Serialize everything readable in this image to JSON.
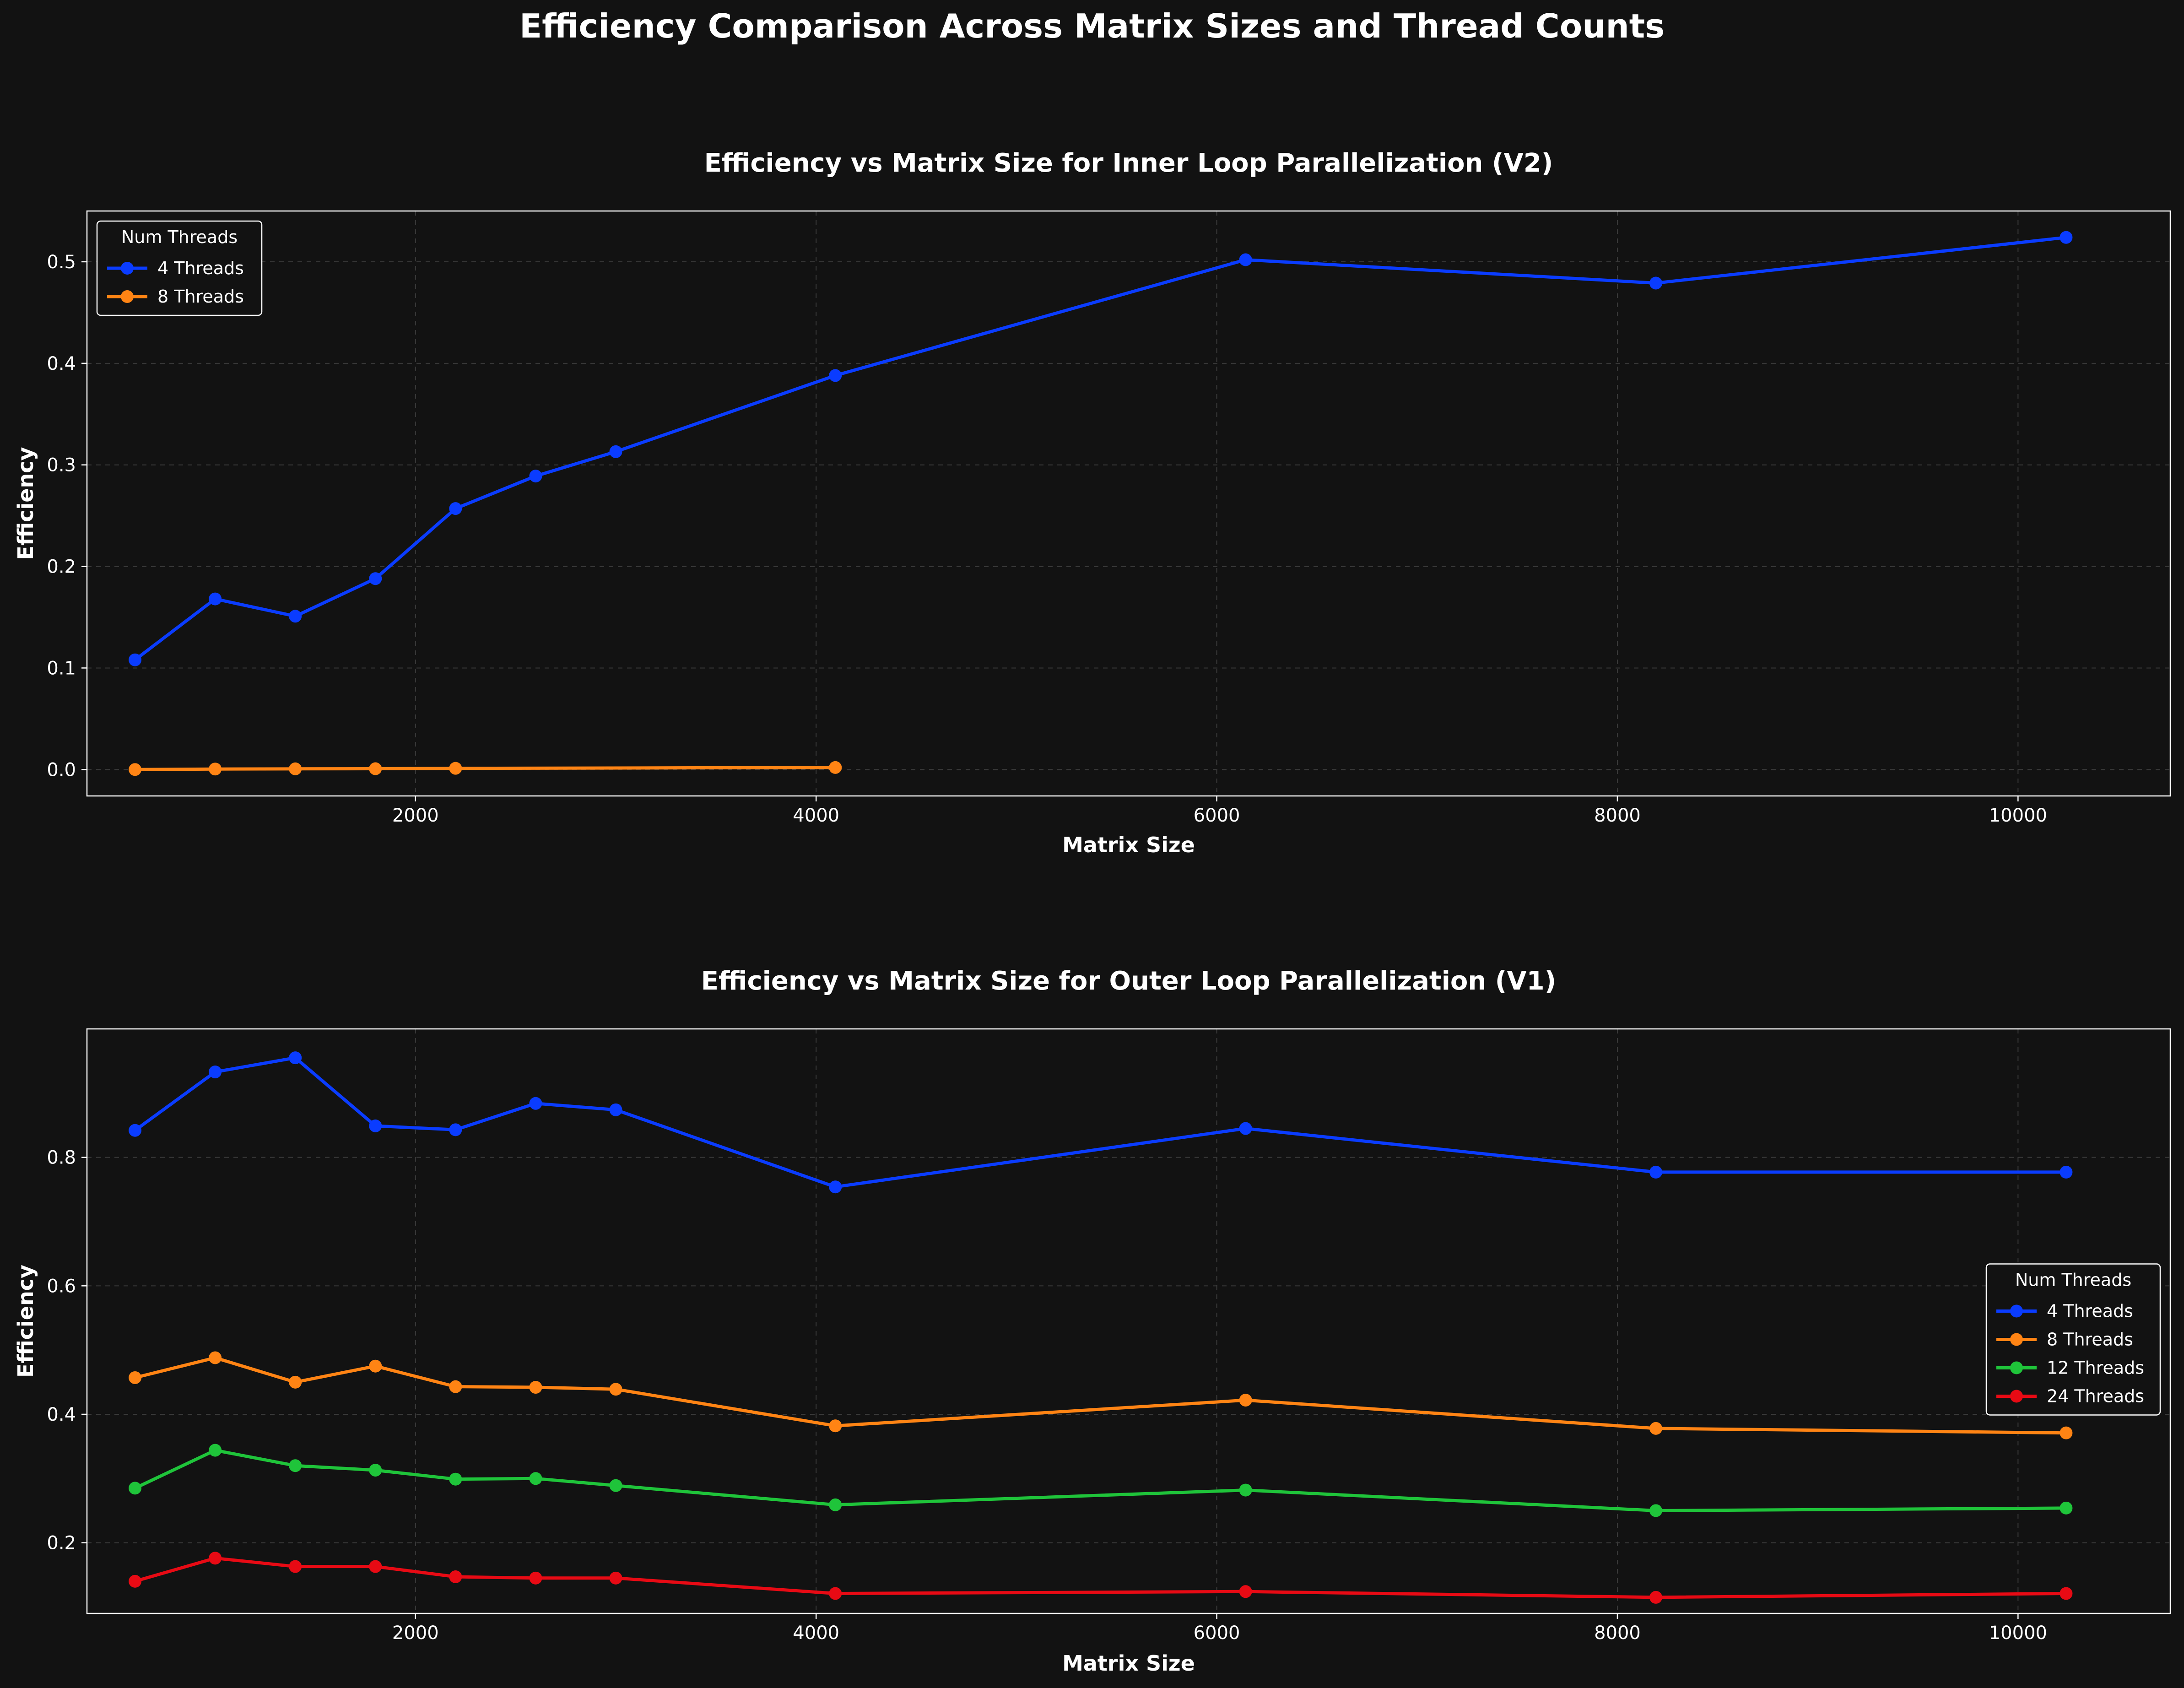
{
  "figure": {
    "suptitle": "Efficiency Comparison Across Matrix Sizes and Thread Counts",
    "background": "#121212"
  },
  "chart_data": [
    {
      "type": "line",
      "title": "Efficiency vs Matrix Size for Inner Loop Parallelization (V2)",
      "xlabel": "Matrix Size",
      "ylabel": "Efficiency",
      "xlim": [
        360,
        10760
      ],
      "ylim": [
        -0.026,
        0.55
      ],
      "xticks": [
        2000,
        4000,
        6000,
        8000,
        10000
      ],
      "xtick_labels": [
        "2000",
        "4000",
        "6000",
        "8000",
        "10000"
      ],
      "yticks": [
        0.0,
        0.1,
        0.2,
        0.3,
        0.4,
        0.5
      ],
      "ytick_labels": [
        "0.0",
        "0.1",
        "0.2",
        "0.3",
        "0.4",
        "0.5"
      ],
      "grid": true,
      "legend": {
        "title": "Num Threads",
        "placement": "upper-left"
      },
      "series": [
        {
          "name": "4 Threads",
          "color": "#0a3cff",
          "x": [
            600,
            1000,
            1400,
            1800,
            2200,
            2600,
            3000,
            4096,
            6144,
            8192,
            10240
          ],
          "y": [
            0.108,
            0.168,
            0.151,
            0.188,
            0.257,
            0.289,
            0.313,
            0.388,
            0.502,
            0.479,
            0.524
          ]
        },
        {
          "name": "8 Threads",
          "color": "#ff8414",
          "x": [
            600,
            1000,
            1400,
            1800,
            2200,
            4096
          ],
          "y": [
            0.0,
            0.0005,
            0.0007,
            0.0008,
            0.0012,
            0.002
          ]
        }
      ]
    },
    {
      "type": "line",
      "title": "Efficiency vs Matrix Size for Outer Loop Parallelization (V1)",
      "xlabel": "Matrix Size",
      "ylabel": "Efficiency",
      "xlim": [
        360,
        10760
      ],
      "ylim": [
        0.09,
        1.0
      ],
      "xticks": [
        2000,
        4000,
        6000,
        8000,
        10000
      ],
      "xtick_labels": [
        "2000",
        "4000",
        "6000",
        "8000",
        "10000"
      ],
      "yticks": [
        0.2,
        0.4,
        0.6,
        0.8
      ],
      "ytick_labels": [
        "0.2",
        "0.4",
        "0.6",
        "0.8"
      ],
      "grid": true,
      "legend": {
        "title": "Num Threads",
        "placement": "center-right"
      },
      "series": [
        {
          "name": "4 Threads",
          "color": "#0a3cff",
          "x": [
            600,
            1000,
            1400,
            1800,
            2200,
            2600,
            3000,
            4096,
            6144,
            8192,
            10240
          ],
          "y": [
            0.842,
            0.933,
            0.955,
            0.849,
            0.843,
            0.884,
            0.874,
            0.754,
            0.845,
            0.777,
            0.777
          ]
        },
        {
          "name": "8 Threads",
          "color": "#ff8414",
          "x": [
            600,
            1000,
            1400,
            1800,
            2200,
            2600,
            3000,
            4096,
            6144,
            8192,
            10240
          ],
          "y": [
            0.457,
            0.488,
            0.45,
            0.475,
            0.443,
            0.442,
            0.439,
            0.382,
            0.422,
            0.378,
            0.371
          ]
        },
        {
          "name": "12 Threads",
          "color": "#1fc43a",
          "x": [
            600,
            1000,
            1400,
            1800,
            2200,
            2600,
            3000,
            4096,
            6144,
            8192,
            10240
          ],
          "y": [
            0.285,
            0.344,
            0.32,
            0.313,
            0.299,
            0.3,
            0.289,
            0.259,
            0.282,
            0.25,
            0.254
          ]
        },
        {
          "name": "24 Threads",
          "color": "#e80a14",
          "x": [
            600,
            1000,
            1400,
            1800,
            2200,
            2600,
            3000,
            4096,
            6144,
            8192,
            10240
          ],
          "y": [
            0.14,
            0.176,
            0.163,
            0.163,
            0.147,
            0.145,
            0.145,
            0.121,
            0.124,
            0.115,
            0.121
          ]
        }
      ]
    }
  ]
}
